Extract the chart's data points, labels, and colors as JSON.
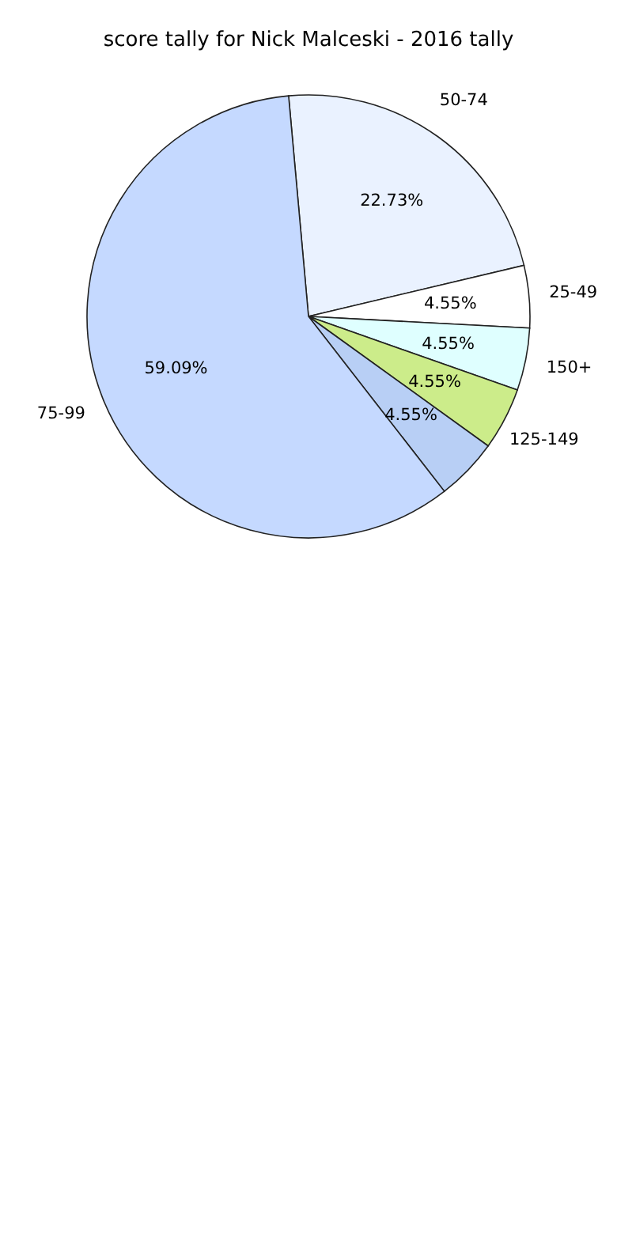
{
  "chart_data": {
    "type": "pie",
    "title": "score tally for Nick Malceski - 2016 tally",
    "categories": [
      "50-74",
      "25-49",
      "150+",
      "125-149",
      null,
      "75-99"
    ],
    "values": [
      22.73,
      4.55,
      4.55,
      4.55,
      4.55,
      59.09
    ],
    "value_labels": [
      "22.73%",
      "4.55%",
      "4.55%",
      "4.55%",
      "4.55%",
      "59.09%"
    ],
    "colors": [
      "#eaf2ff",
      "#ffffff",
      "#dfffff",
      "#ccec8a",
      "#b8cff5",
      "#c5d9ff"
    ],
    "legend": false
  }
}
